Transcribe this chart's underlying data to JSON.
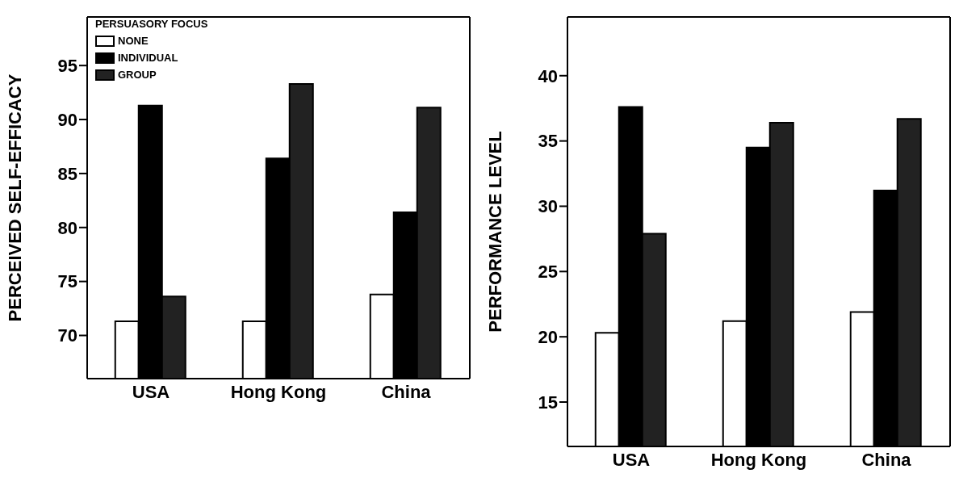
{
  "chart_data": [
    {
      "type": "bar",
      "ylabel": "PERCEIVED SELF-EFFICACY",
      "legend_title": "PERSUASORY FOCUS",
      "legend": "top left",
      "categories": [
        "USA",
        "Hong Kong",
        "China"
      ],
      "ylim": [
        66,
        99.5
      ],
      "yticks": [
        70,
        75,
        80,
        85,
        90,
        95
      ],
      "grid": false,
      "series": [
        {
          "name": "NONE",
          "color": "#ffffff",
          "values": [
            71.3,
            71.3,
            73.8
          ]
        },
        {
          "name": "INDIVIDUAL",
          "color": "#000000",
          "values": [
            91.3,
            86.4,
            81.4
          ]
        },
        {
          "name": "GROUP",
          "color": "#222222",
          "values": [
            73.6,
            93.3,
            91.1
          ]
        }
      ]
    },
    {
      "type": "bar",
      "ylabel": "PERFORMANCE LEVEL",
      "legend": false,
      "categories": [
        "USA",
        "Hong Kong",
        "China"
      ],
      "ylim": [
        11.6,
        44.5
      ],
      "yticks": [
        15,
        20,
        25,
        30,
        35,
        40
      ],
      "grid": false,
      "series": [
        {
          "color": "#ffffff",
          "values": [
            20.3,
            21.2,
            21.9
          ]
        },
        {
          "color": "#000000",
          "values": [
            37.6,
            34.5,
            31.2
          ]
        },
        {
          "color": "#222222",
          "values": [
            27.9,
            36.4,
            36.7
          ]
        }
      ]
    }
  ]
}
